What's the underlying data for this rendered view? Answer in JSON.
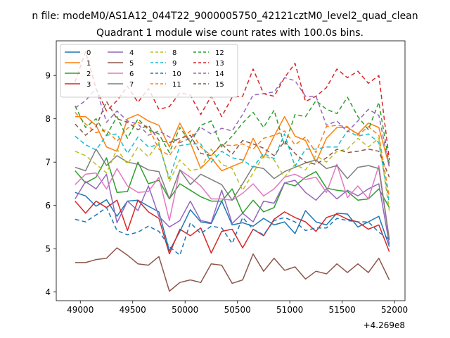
{
  "chart_data": {
    "type": "line",
    "suptitle": "n file: modeM0/AS1A12_044T22_9000005750_42121cztM0_level2_quad_clean",
    "title": "Quadrant 1 module wise count rates with 100.0s bins.",
    "xlabel": "",
    "ylabel": "",
    "x_offset_label": "+4.269e8",
    "xlim": [
      48770,
      52100
    ],
    "ylim": [
      3.8,
      9.8
    ],
    "xticks": [
      49000,
      49500,
      50000,
      50500,
      51000,
      51500,
      52000
    ],
    "xtick_labels": [
      "49000",
      "49500",
      "50000",
      "50500",
      "51000",
      "51500",
      "52000"
    ],
    "yticks": [
      4,
      5,
      6,
      7,
      8,
      9
    ],
    "ytick_labels": [
      "4",
      "5",
      "6",
      "7",
      "8",
      "9"
    ],
    "legend_position": "top-left",
    "legend_columns": 4,
    "x": [
      48950,
      49050,
      49150,
      49250,
      49350,
      49450,
      49550,
      49650,
      49750,
      49850,
      49950,
      50050,
      50150,
      50250,
      50350,
      50450,
      50550,
      50650,
      50750,
      50850,
      50950,
      51050,
      51150,
      51250,
      51350,
      51450,
      51550,
      51650,
      51750,
      51850,
      51950
    ],
    "series": [
      {
        "name": "0",
        "color": "#1f77b4",
        "dash": "",
        "values": [
          6.3,
          6.22,
          5.98,
          6.13,
          5.75,
          6.1,
          6.12,
          5.98,
          5.85,
          4.95,
          5.4,
          5.9,
          5.62,
          5.58,
          6.1,
          5.55,
          5.6,
          5.52,
          5.7,
          5.55,
          5.62,
          5.35,
          5.88,
          5.62,
          5.55,
          5.82,
          5.8,
          5.5,
          5.62,
          5.75,
          5.05
        ]
      },
      {
        "name": "1",
        "color": "#ff7f0e",
        "dash": "",
        "values": [
          8.05,
          8.05,
          7.85,
          7.35,
          7.25,
          8.0,
          8.1,
          7.95,
          7.85,
          7.35,
          7.9,
          7.45,
          6.85,
          7.1,
          6.8,
          6.9,
          7.0,
          7.55,
          7.1,
          7.6,
          8.05,
          7.6,
          7.5,
          7.0,
          7.55,
          7.8,
          7.8,
          7.65,
          7.9,
          7.8,
          6.9
        ]
      },
      {
        "name": "2",
        "color": "#2ca02c",
        "dash": "",
        "values": [
          6.8,
          6.52,
          6.65,
          7.1,
          6.3,
          6.32,
          7.0,
          6.5,
          6.58,
          6.15,
          6.5,
          6.35,
          6.2,
          6.1,
          6.1,
          6.38,
          5.82,
          6.12,
          5.85,
          5.95,
          6.52,
          6.45,
          6.65,
          6.78,
          6.4,
          6.35,
          6.32,
          6.12,
          6.15,
          6.38,
          5.95
        ]
      },
      {
        "name": "3",
        "color": "#d62728",
        "dash": "",
        "values": [
          6.1,
          5.82,
          6.1,
          5.95,
          6.12,
          5.42,
          6.12,
          5.85,
          5.7,
          4.88,
          5.45,
          5.3,
          5.48,
          4.9,
          5.4,
          5.45,
          5.02,
          5.45,
          5.3,
          5.68,
          5.85,
          5.72,
          5.62,
          5.4,
          5.72,
          5.8,
          5.68,
          5.62,
          5.45,
          5.55,
          4.93
        ]
      },
      {
        "name": "4",
        "color": "#9467bd",
        "dash": "",
        "values": [
          6.15,
          6.55,
          6.38,
          6.72,
          5.6,
          6.1,
          5.88,
          6.45,
          5.75,
          5.5,
          5.65,
          6.1,
          5.65,
          5.6,
          6.35,
          5.58,
          5.82,
          5.62,
          6.1,
          6.05,
          6.52,
          6.58,
          6.3,
          6.12,
          6.38,
          6.15,
          6.35,
          6.22,
          6.38,
          6.5,
          5.1
        ]
      },
      {
        "name": "5",
        "color": "#8c564b",
        "dash": "",
        "values": [
          4.68,
          4.68,
          4.75,
          4.78,
          5.02,
          4.85,
          4.65,
          4.62,
          4.82,
          4.02,
          4.22,
          4.28,
          4.22,
          4.65,
          4.62,
          4.2,
          4.28,
          4.88,
          4.48,
          4.78,
          4.5,
          4.58,
          4.3,
          4.48,
          4.42,
          4.65,
          4.45,
          4.65,
          4.45,
          4.78,
          4.28
        ]
      },
      {
        "name": "6",
        "color": "#e377c2",
        "dash": "",
        "values": [
          6.48,
          6.72,
          6.75,
          6.38,
          6.85,
          6.45,
          6.3,
          6.32,
          6.65,
          5.65,
          6.82,
          6.65,
          6.45,
          6.15,
          6.15,
          6.12,
          6.28,
          6.5,
          6.22,
          6.38,
          6.65,
          6.72,
          6.6,
          6.65,
          6.3,
          6.95,
          6.18,
          6.45,
          6.15,
          6.92,
          5.22
        ]
      },
      {
        "name": "7",
        "color": "#7f7f7f",
        "dash": "",
        "values": [
          6.88,
          6.8,
          7.3,
          6.92,
          7.15,
          7.0,
          6.95,
          6.82,
          6.78,
          6.15,
          6.82,
          6.48,
          6.72,
          6.6,
          6.48,
          6.12,
          6.5,
          6.9,
          6.85,
          6.62,
          6.78,
          6.88,
          6.98,
          7.05,
          6.85,
          6.92,
          6.62,
          6.88,
          6.92,
          6.85,
          5.2
        ]
      },
      {
        "name": "8",
        "color": "#bcbd22",
        "dash": "6,4",
        "values": [
          7.25,
          7.15,
          6.95,
          6.75,
          7.3,
          6.95,
          7.35,
          7.12,
          7.45,
          6.55,
          7.05,
          6.8,
          6.85,
          7.3,
          6.95,
          6.85,
          6.35,
          6.75,
          7.15,
          7.05,
          6.65,
          6.95,
          6.82,
          7.15,
          7.0,
          7.25,
          7.3,
          7.55,
          7.35,
          7.55,
          5.88
        ]
      },
      {
        "name": "9",
        "color": "#17becf",
        "dash": "6,4",
        "values": [
          7.6,
          7.4,
          7.28,
          7.62,
          7.65,
          7.2,
          7.58,
          7.35,
          7.4,
          6.62,
          7.38,
          7.42,
          7.42,
          7.0,
          7.25,
          7.1,
          7.05,
          6.88,
          7.2,
          7.08,
          7.65,
          6.9,
          7.3,
          7.3,
          7.35,
          7.35,
          7.72,
          7.6,
          7.65,
          7.45,
          6.05
        ]
      },
      {
        "name": "10",
        "color": "#1f77b4",
        "dash": "6,4",
        "values": [
          5.68,
          5.62,
          5.78,
          5.95,
          5.42,
          5.32,
          5.38,
          5.52,
          5.4,
          5.05,
          4.85,
          5.6,
          5.35,
          5.52,
          5.48,
          5.12,
          5.72,
          5.45,
          5.32,
          5.65,
          5.72,
          5.62,
          5.42,
          5.48,
          5.48,
          5.7,
          5.65,
          5.62,
          5.62,
          5.38,
          5.22
        ]
      },
      {
        "name": "11",
        "color": "#ff7f0e",
        "dash": "6,4",
        "values": [
          8.15,
          7.88,
          7.68,
          7.75,
          7.48,
          7.78,
          7.92,
          7.8,
          7.3,
          7.15,
          7.5,
          7.72,
          7.35,
          7.15,
          7.4,
          7.38,
          7.42,
          7.3,
          7.55,
          7.62,
          7.72,
          7.4,
          7.58,
          7.22,
          7.82,
          7.85,
          7.82,
          7.62,
          7.82,
          7.62,
          6.18
        ]
      },
      {
        "name": "12",
        "color": "#2ca02c",
        "dash": "6,4",
        "values": [
          8.3,
          7.8,
          8.0,
          7.62,
          8.05,
          7.55,
          8.0,
          7.75,
          7.65,
          7.22,
          7.8,
          7.45,
          7.85,
          7.95,
          7.35,
          7.6,
          7.9,
          8.15,
          7.8,
          8.2,
          7.38,
          8.1,
          8.05,
          8.42,
          8.22,
          8.12,
          8.5,
          8.05,
          7.75,
          8.38,
          6.95
        ]
      },
      {
        "name": "13",
        "color": "#d62728",
        "dash": "6,4",
        "values": [
          8.85,
          9.55,
          8.7,
          8.18,
          8.42,
          8.75,
          8.38,
          8.7,
          8.22,
          8.28,
          8.6,
          8.55,
          8.1,
          8.52,
          8.05,
          8.5,
          8.52,
          9.15,
          8.58,
          8.52,
          8.95,
          9.28,
          8.4,
          8.52,
          8.72,
          9.15,
          8.95,
          9.1,
          8.82,
          9.0,
          7.05
        ]
      },
      {
        "name": "14",
        "color": "#9467bd",
        "dash": "6,4",
        "values": [
          8.25,
          8.42,
          8.7,
          7.92,
          8.18,
          7.95,
          7.88,
          7.62,
          7.72,
          7.58,
          7.45,
          7.55,
          7.8,
          7.65,
          7.78,
          7.72,
          8.1,
          8.55,
          8.58,
          8.62,
          8.95,
          8.88,
          8.52,
          8.52,
          7.85,
          7.95,
          7.7,
          7.95,
          8.22,
          8.08,
          6.88
        ]
      },
      {
        "name": "15",
        "color": "#8c564b",
        "dash": "6,4",
        "values": [
          7.88,
          7.62,
          7.82,
          8.4,
          8.0,
          7.92,
          7.75,
          7.85,
          7.5,
          7.45,
          7.55,
          7.62,
          7.2,
          7.15,
          7.42,
          7.18,
          7.5,
          7.42,
          7.32,
          7.15,
          7.48,
          7.2,
          7.0,
          6.95,
          7.1,
          7.3,
          7.22,
          7.25,
          7.3,
          7.25,
          6.65
        ]
      }
    ]
  }
}
